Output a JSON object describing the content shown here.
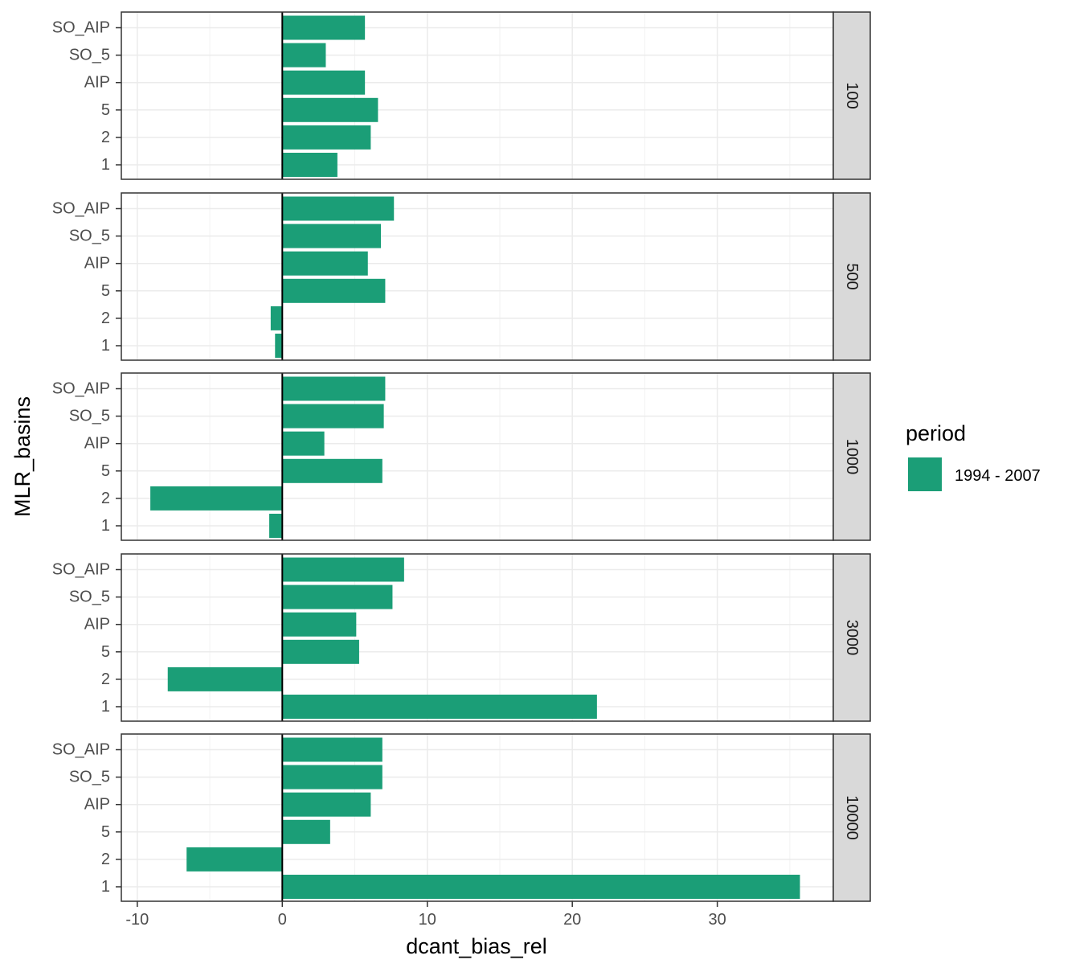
{
  "chart_data": {
    "type": "bar",
    "orientation": "horizontal",
    "facet_by": "depth",
    "xlabel": "dcant_bias_rel",
    "ylabel": "MLR_basins",
    "xlim": [
      -11.1,
      38.0
    ],
    "x_ticks": [
      -10,
      0,
      10,
      20,
      30
    ],
    "x_tick_labels": [
      "-10",
      "0",
      "10",
      "20",
      "30"
    ],
    "categories": [
      "SO_AIP",
      "SO_5",
      "AIP",
      "5",
      "2",
      "1"
    ],
    "legend": {
      "title": "period",
      "entries": [
        {
          "label": "1994 - 2007",
          "color": "#1b9e77"
        }
      ],
      "position": "right"
    },
    "grid": true,
    "bar_color": "#1b9e77",
    "panels": [
      {
        "facet": "100",
        "values": {
          "SO_AIP": 5.7,
          "SO_5": 3.0,
          "AIP": 5.7,
          "5": 6.6,
          "2": 6.1,
          "1": 3.8
        }
      },
      {
        "facet": "500",
        "values": {
          "SO_AIP": 7.7,
          "SO_5": 6.8,
          "AIP": 5.9,
          "5": 7.1,
          "2": -0.8,
          "1": -0.5
        }
      },
      {
        "facet": "1000",
        "values": {
          "SO_AIP": 7.1,
          "SO_5": 7.0,
          "AIP": 2.9,
          "5": 6.9,
          "2": -9.1,
          "1": -0.9
        }
      },
      {
        "facet": "3000",
        "values": {
          "SO_AIP": 8.4,
          "SO_5": 7.6,
          "AIP": 5.1,
          "5": 5.3,
          "2": -7.9,
          "1": 21.7
        }
      },
      {
        "facet": "10000",
        "values": {
          "SO_AIP": 6.9,
          "SO_5": 6.9,
          "AIP": 6.1,
          "5": 3.3,
          "2": -6.6,
          "1": 35.7
        }
      }
    ]
  }
}
